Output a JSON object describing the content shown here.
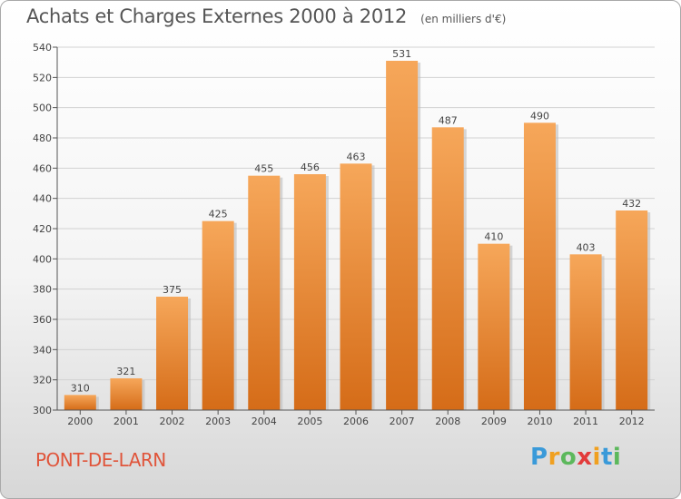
{
  "chart_data": {
    "type": "bar",
    "title": "Achats et Charges Externes 2000 à 2012",
    "subtitle": "(en milliers d'€)",
    "categories": [
      "2000",
      "2001",
      "2002",
      "2003",
      "2004",
      "2005",
      "2006",
      "2007",
      "2008",
      "2009",
      "2010",
      "2011",
      "2012"
    ],
    "values": [
      310,
      321,
      375,
      425,
      455,
      456,
      463,
      531,
      487,
      410,
      490,
      403,
      432
    ],
    "ylim": [
      300,
      540
    ],
    "yticks": [
      300,
      320,
      340,
      360,
      380,
      400,
      420,
      440,
      460,
      480,
      500,
      520,
      540
    ],
    "grid": true,
    "bar_color_top": "#f6a75a",
    "bar_color_bottom": "#d56c18"
  },
  "commune": "PONT-DE-LARN",
  "logo": {
    "letters": [
      "P",
      "r",
      "o",
      "x",
      "i",
      "t",
      "i"
    ],
    "colors": [
      "#3a9ad9",
      "#f0a020",
      "#5cb85c",
      "#e23b3b",
      "#f0a020",
      "#3a9ad9",
      "#5cb85c"
    ]
  }
}
